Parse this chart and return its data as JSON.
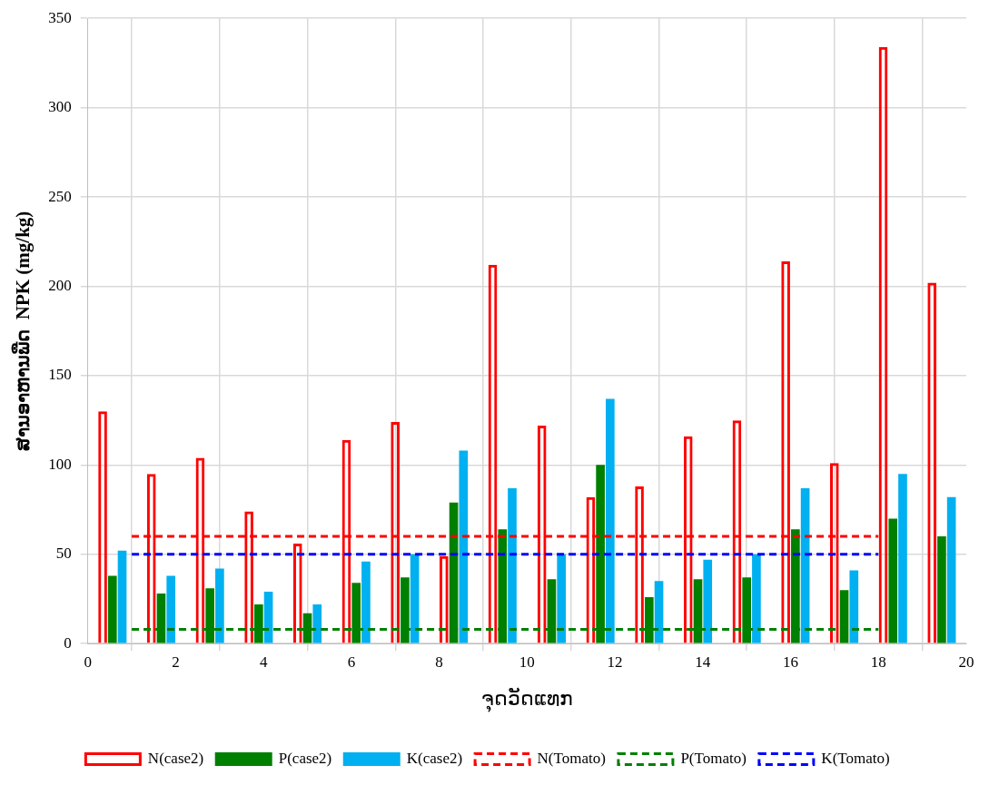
{
  "chart_data": {
    "type": "bar",
    "xlabel": "ຈຸດວັດແທກ",
    "ylabel": "ສານອາຫານພືດ  NPK (mg/kg)",
    "xlim": [
      0,
      20
    ],
    "xticks": [
      0,
      2,
      4,
      6,
      8,
      10,
      12,
      14,
      16,
      18,
      20
    ],
    "ylim": [
      0,
      350
    ],
    "yticks": [
      0,
      50,
      100,
      150,
      200,
      250,
      300,
      350
    ],
    "grid": true,
    "legend": "bottom",
    "marker": "none",
    "series": [
      {
        "name": "N(case2)",
        "color": "#ff0000",
        "x": [
          0.56,
          1.67,
          2.78,
          3.89,
          5,
          6.11,
          7.22,
          8.33,
          9.44,
          10.56,
          11.67,
          12.78,
          13.89,
          15,
          16.11,
          17.22,
          18.33,
          19.44
        ],
        "values": [
          130,
          95,
          104,
          74,
          56,
          114,
          124,
          49,
          212,
          122,
          82,
          88,
          116,
          125,
          214,
          101,
          334,
          202
        ]
      },
      {
        "name": "P(case2)",
        "color": "#008000",
        "x": [
          0.56,
          1.67,
          2.78,
          3.89,
          5,
          6.11,
          7.22,
          8.33,
          9.44,
          10.56,
          11.67,
          12.78,
          13.89,
          15,
          16.11,
          17.22,
          18.33,
          19.44
        ],
        "values": [
          38,
          28,
          31,
          22,
          17,
          34,
          37,
          79,
          64,
          36,
          100,
          26,
          36,
          37,
          64,
          30,
          70,
          60
        ]
      },
      {
        "name": "K(case2)",
        "color": "#00b0f0",
        "x": [
          0.56,
          1.67,
          2.78,
          3.89,
          5,
          6.11,
          7.22,
          8.33,
          9.44,
          10.56,
          11.67,
          12.78,
          13.89,
          15,
          16.11,
          17.22,
          18.33,
          19.44
        ],
        "values": [
          52,
          38,
          42,
          29,
          22,
          46,
          50,
          108,
          87,
          50,
          137,
          35,
          47,
          50,
          87,
          41,
          95,
          82
        ]
      },
      {
        "name": "N(Tomato)",
        "type": "line",
        "color": "#ff0000",
        "line_style": "dashed",
        "x": [
          1,
          18
        ],
        "values": [
          60,
          60
        ]
      },
      {
        "name": "P(Tomato)",
        "type": "line",
        "color": "#008000",
        "line_style": "dashed",
        "x": [
          1,
          18
        ],
        "values": [
          8,
          8
        ]
      },
      {
        "name": "K(Tomato)",
        "type": "line",
        "color": "#0000ff",
        "line_style": "dashed",
        "x": [
          1,
          18
        ],
        "values": [
          50,
          50
        ]
      }
    ]
  }
}
